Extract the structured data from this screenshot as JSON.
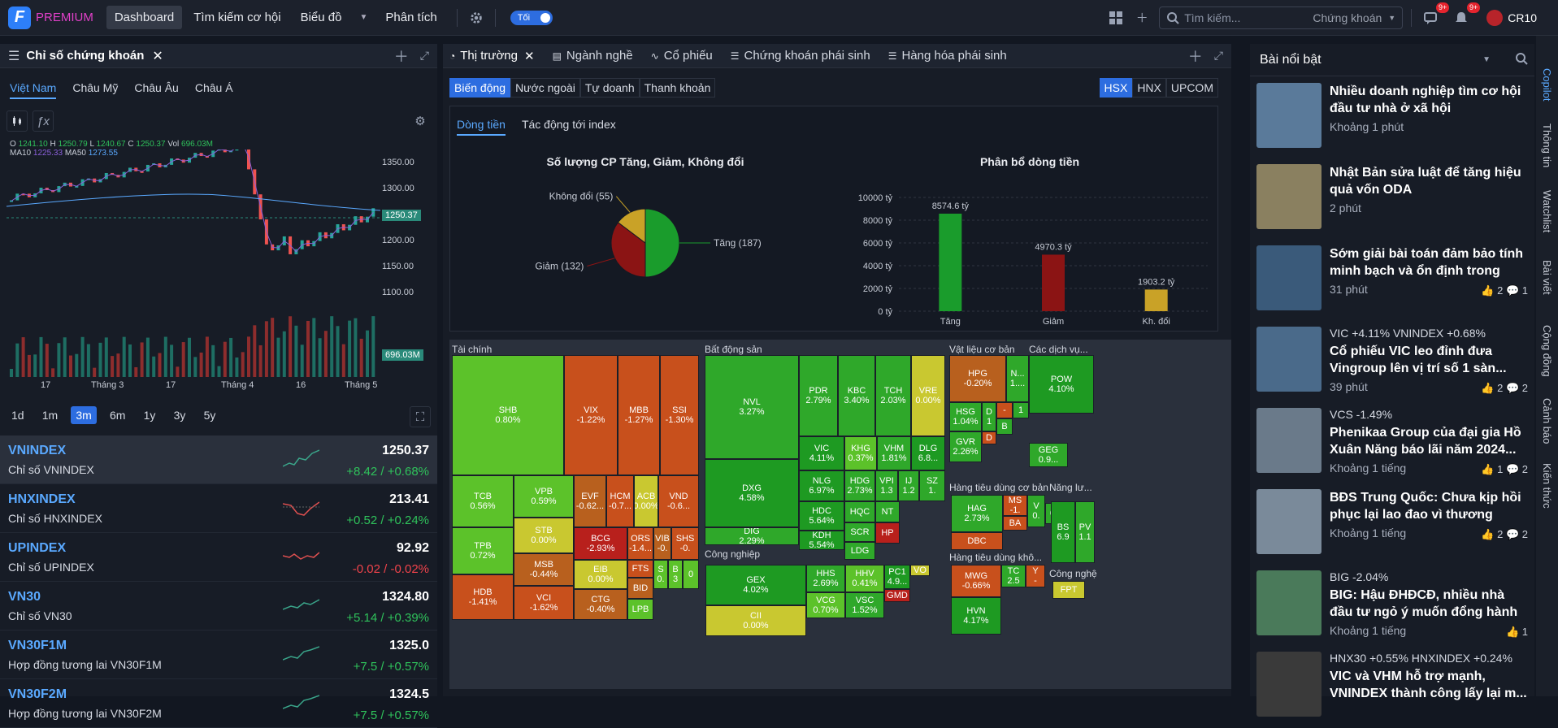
{
  "topbar": {
    "brand": "PREMIUM",
    "nav": [
      "Dashboard",
      "Tìm kiếm cơ hội",
      "Biểu đồ",
      "Phân tích"
    ],
    "theme_label": "Tối",
    "search_placeholder": "Tìm kiếm...",
    "search_scope": "Chứng khoán",
    "notif_count_1": "9+",
    "notif_count_2": "9+",
    "user": "CR10"
  },
  "left": {
    "panel_title": "Chỉ số chứng khoán",
    "regions": [
      "Việt Nam",
      "Châu Mỹ",
      "Châu Âu",
      "Châu Á"
    ],
    "ohlc": {
      "o_label": "O",
      "o": "1241.10",
      "h_label": "H",
      "h": "1250.79",
      "l_label": "L",
      "l": "1240.67",
      "c_label": "C",
      "c": "1250.37",
      "vol_label": "Vol",
      "vol": "696.03M"
    },
    "ma": {
      "ma10_label": "MA10",
      "ma10": "1225.33",
      "ma50_label": "MA50",
      "ma50": "1273.55"
    },
    "price_axis": [
      "1350.00",
      "1300.00",
      "1250.37",
      "1200.00",
      "1150.00",
      "1100.00",
      "696.03M"
    ],
    "date_axis": [
      "17",
      "Tháng 3",
      "17",
      "Tháng 4",
      "16",
      "Tháng 5"
    ],
    "ranges": [
      "1d",
      "1m",
      "3m",
      "6m",
      "1y",
      "3y",
      "5y"
    ],
    "active_range": "3m",
    "indices": [
      {
        "name": "VNINDEX",
        "desc": "Chỉ số VNINDEX",
        "value": "1250.37",
        "change": "+8.42 / +0.68%",
        "dir": "up"
      },
      {
        "name": "HNXINDEX",
        "desc": "Chỉ số HNXINDEX",
        "value": "213.41",
        "change": "+0.52 / +0.24%",
        "dir": "up"
      },
      {
        "name": "UPINDEX",
        "desc": "Chỉ số UPINDEX",
        "value": "92.92",
        "change": "-0.02 / -0.02%",
        "dir": "dn"
      },
      {
        "name": "VN30",
        "desc": "Chỉ số VN30",
        "value": "1324.80",
        "change": "+5.14 / +0.39%",
        "dir": "up"
      },
      {
        "name": "VN30F1M",
        "desc": "Hợp đồng tương lai VN30F1M",
        "value": "1325.0",
        "change": "+7.5 / +0.57%",
        "dir": "up"
      },
      {
        "name": "VN30F2M",
        "desc": "Hợp đồng tương lai VN30F2M",
        "value": "1324.5",
        "change": "+7.5 / +0.57%",
        "dir": "up"
      }
    ]
  },
  "mid": {
    "tabs": [
      "Thị trường",
      "Ngành nghề",
      "Cổ phiếu",
      "Chứng khoán phái sinh",
      "Hàng hóa phái sinh"
    ],
    "modes": [
      "Biến động",
      "Nước ngoài",
      "Tự doanh",
      "Thanh khoản"
    ],
    "exchanges": [
      "HSX",
      "HNX",
      "UPCOM"
    ],
    "subtabs": [
      "Dòng tiền",
      "Tác động tới index"
    ],
    "pie_title": "Số lượng CP Tăng, Giảm, Không đổi",
    "pie_labels": {
      "up": "Tăng (187)",
      "down": "Giảm (132)",
      "flat": "Không đổi (55)"
    },
    "bar_title": "Phân bổ dòng tiền",
    "bar_yticks": [
      "10000 tỷ",
      "8000 tỷ",
      "6000 tỷ",
      "4000 tỷ",
      "2000 tỷ",
      "0 tỷ"
    ],
    "sectors": {
      "finance": "Tài chính",
      "realestate": "Bất động sản",
      "materials": "Vật liệu cơ bản",
      "services": "Các dịch vụ...",
      "industry": "Công nghiệp",
      "consumer": "Hàng tiêu dùng cơ bản",
      "consumer2": "Hàng tiêu dùng khô...",
      "energy": "Năng lư...",
      "tech": "Công nghệ"
    }
  },
  "chart_data": [
    {
      "type": "pie",
      "title": "Số lượng CP Tăng, Giảm, Không đổi",
      "categories": [
        "Tăng",
        "Giảm",
        "Không đổi"
      ],
      "values": [
        187,
        132,
        55
      ],
      "colors": [
        "#1a9c2c",
        "#8b1414",
        "#c9a227"
      ]
    },
    {
      "type": "bar",
      "title": "Phân bổ dòng tiền",
      "categories": [
        "Tăng",
        "Giảm",
        "Kh. đổi"
      ],
      "values": [
        8574.6,
        4970.3,
        1903.2
      ],
      "value_labels": [
        "8574.6 tỷ",
        "4970.3 tỷ",
        "1903.2 tỷ"
      ],
      "ylim": [
        0,
        10000
      ],
      "colors": [
        "#1a9c2c",
        "#8b1414",
        "#c9a227"
      ]
    }
  ],
  "treemap": [
    {
      "t": "SHB",
      "v": "0.80%",
      "c": "#5cc22a"
    },
    {
      "t": "VIX",
      "v": "-1.22%",
      "c": "#c8501c"
    },
    {
      "t": "MBB",
      "v": "-1.27%",
      "c": "#c8501c"
    },
    {
      "t": "SSI",
      "v": "-1.30%",
      "c": "#c8501c"
    },
    {
      "t": "TCB",
      "v": "0.56%",
      "c": "#5cc22a"
    },
    {
      "t": "VPB",
      "v": "0.59%",
      "c": "#5cc22a"
    },
    {
      "t": "EVF",
      "v": "-0.62...",
      "c": "#b8601e"
    },
    {
      "t": "HCM",
      "v": "-0.7...",
      "c": "#c8501c"
    },
    {
      "t": "ACB",
      "v": "0.00%",
      "c": "#c9c830"
    },
    {
      "t": "VND",
      "v": "-0.6...",
      "c": "#c8501c"
    },
    {
      "t": "STB",
      "v": "0.00%",
      "c": "#c9c830"
    },
    {
      "t": "TPB",
      "v": "0.72%",
      "c": "#5cc22a"
    },
    {
      "t": "BCG",
      "v": "-2.93%",
      "c": "#b8201c"
    },
    {
      "t": "ORS",
      "v": "-1.4...",
      "c": "#c8501c"
    },
    {
      "t": "VIB",
      "v": "-0.",
      "c": "#b8601e"
    },
    {
      "t": "SHS",
      "v": "-0.",
      "c": "#c8501c"
    },
    {
      "t": "MSB",
      "v": "-0.44%",
      "c": "#b8601e"
    },
    {
      "t": "EIB",
      "v": "0.00%",
      "c": "#c9c830"
    },
    {
      "t": "FTS",
      "v": "",
      "c": "#c8501c"
    },
    {
      "t": "S",
      "v": "0.",
      "c": "#5cc22a"
    },
    {
      "t": "B",
      "v": "3",
      "c": "#5cc22a"
    },
    {
      "t": "",
      "v": "0",
      "c": "#5cc22a"
    },
    {
      "t": "HDB",
      "v": "-1.41%",
      "c": "#c8501c"
    },
    {
      "t": "VCI",
      "v": "-1.62%",
      "c": "#c8501c"
    },
    {
      "t": "BID",
      "v": "",
      "c": "#b8601e"
    },
    {
      "t": "CTG",
      "v": "-0.40%",
      "c": "#b8601e"
    },
    {
      "t": "LPB",
      "v": "",
      "c": "#5cc22a"
    },
    {
      "t": "NVL",
      "v": "3.27%",
      "c": "#2fa82a"
    },
    {
      "t": "PDR",
      "v": "2.79%",
      "c": "#2fa82a"
    },
    {
      "t": "KBC",
      "v": "3.40%",
      "c": "#2fa82a"
    },
    {
      "t": "TCH",
      "v": "2.03%",
      "c": "#2fa82a"
    },
    {
      "t": "VRE",
      "v": "0.00%",
      "c": "#c9c830"
    },
    {
      "t": "VIC",
      "v": "4.11%",
      "c": "#1e9a22"
    },
    {
      "t": "KHG",
      "v": "0.37%",
      "c": "#5cc22a"
    },
    {
      "t": "VHM",
      "v": "1.81%",
      "c": "#2fa82a"
    },
    {
      "t": "DLG",
      "v": "6.8...",
      "c": "#1e9a22"
    },
    {
      "t": "DXG",
      "v": "4.58%",
      "c": "#1e9a22"
    },
    {
      "t": "NLG",
      "v": "6.97%",
      "c": "#1e9a22"
    },
    {
      "t": "HDG",
      "v": "2.73%",
      "c": "#2fa82a"
    },
    {
      "t": "VPI",
      "v": "1.3",
      "c": "#2fa82a"
    },
    {
      "t": "IJ",
      "v": "1.2",
      "c": "#2fa82a"
    },
    {
      "t": "SZ",
      "v": "1.",
      "c": "#2fa82a"
    },
    {
      "t": "HDC",
      "v": "5.64%",
      "c": "#1e9a22"
    },
    {
      "t": "HQC",
      "v": "",
      "c": "#2fa82a"
    },
    {
      "t": "NT",
      "v": "",
      "c": "#2fa82a"
    },
    {
      "t": "DIG",
      "v": "2.29%",
      "c": "#2fa82a"
    },
    {
      "t": "KDH",
      "v": "5.54%",
      "c": "#1e9a22"
    },
    {
      "t": "SCR",
      "v": "",
      "c": "#2fa82a"
    },
    {
      "t": "HP",
      "v": "",
      "c": "#b8201c"
    },
    {
      "t": "LDG",
      "v": "",
      "c": "#2fa82a"
    },
    {
      "t": "HPG",
      "v": "-0.20%",
      "c": "#b8601e"
    },
    {
      "t": "N...",
      "v": "1....",
      "c": "#2fa82a"
    },
    {
      "t": "HSG",
      "v": "1.04%",
      "c": "#2fa82a"
    },
    {
      "t": "D",
      "v": "1",
      "c": "#2fa82a"
    },
    {
      "t": "-",
      "v": "",
      "c": "#c8501c"
    },
    {
      "t": "1",
      "v": "",
      "c": "#2fa82a"
    },
    {
      "t": "D",
      "v": "",
      "c": "#c8501c"
    },
    {
      "t": "B",
      "v": "",
      "c": "#2fa82a"
    },
    {
      "t": "GVR",
      "v": "2.26%",
      "c": "#2fa82a"
    },
    {
      "t": "POW",
      "v": "4.10%",
      "c": "#1e9a22"
    },
    {
      "t": "GEG",
      "v": "0.9...",
      "c": "#2fa82a"
    },
    {
      "t": "GEX",
      "v": "4.02%",
      "c": "#1e9a22"
    },
    {
      "t": "HHS",
      "v": "2.69%",
      "c": "#2fa82a"
    },
    {
      "t": "HHV",
      "v": "0.41%",
      "c": "#5cc22a"
    },
    {
      "t": "PC1",
      "v": "4.9...",
      "c": "#1e9a22"
    },
    {
      "t": "VO",
      "v": "",
      "c": "#c9c830"
    },
    {
      "t": "GMD",
      "v": "",
      "c": "#b8201c"
    },
    {
      "t": "CII",
      "v": "0.00%",
      "c": "#c9c830"
    },
    {
      "t": "VCG",
      "v": "0.70%",
      "c": "#5cc22a"
    },
    {
      "t": "VSC",
      "v": "1.52%",
      "c": "#2fa82a"
    },
    {
      "t": "HAG",
      "v": "2.73%",
      "c": "#2fa82a"
    },
    {
      "t": "MS",
      "v": "-1.",
      "c": "#c8501c"
    },
    {
      "t": "V",
      "v": "0.",
      "c": "#2fa82a"
    },
    {
      "t": "0",
      "v": "",
      "c": "#2fa82a"
    },
    {
      "t": "BA",
      "v": "",
      "c": "#c8501c"
    },
    {
      "t": "DBC",
      "v": "",
      "c": "#c8501c"
    },
    {
      "t": "BS",
      "v": "6.9",
      "c": "#1e9a22"
    },
    {
      "t": "PV",
      "v": "1.1",
      "c": "#2fa82a"
    },
    {
      "t": "MWG",
      "v": "-0.66%",
      "c": "#c8501c"
    },
    {
      "t": "TC",
      "v": "2.5",
      "c": "#2fa82a"
    },
    {
      "t": "Y",
      "v": "-",
      "c": "#c8501c"
    },
    {
      "t": "HVN",
      "v": "4.17%",
      "c": "#1e9a22"
    },
    {
      "t": "FPT",
      "v": "",
      "c": "#c9c830"
    }
  ],
  "right": {
    "title": "Bài nổi bật",
    "news": [
      {
        "tag": "",
        "title": "Nhiều doanh nghiệp tìm cơ hội đầu tư nhà ở xã hội",
        "time": "Khoảng 1 phút",
        "likes": "",
        "comments": ""
      },
      {
        "tag": "",
        "title": "Nhật Bản sửa luật để tăng hiệu quả vốn ODA",
        "time": "2 phút",
        "likes": "",
        "comments": ""
      },
      {
        "tag": "",
        "title": "Sớm giải bài toán đảm bảo tính minh bạch và ổn định trong cơ...",
        "time": "31 phút",
        "likes": "2",
        "comments": "1"
      },
      {
        "tag": "VIC +4.11%   VNINDEX +0.68%",
        "title": "Cổ phiếu VIC leo đỉnh đưa Vingroup lên vị trí số 1 sàn...",
        "time": "39 phút",
        "likes": "2",
        "comments": "2"
      },
      {
        "tag": "VCS -1.49%",
        "title": "Phenikaa Group của đại gia Hồ Xuân Năng báo lãi năm 2024...",
        "time": "Khoảng 1 tiếng",
        "likes": "1",
        "comments": "2"
      },
      {
        "tag": "",
        "title": "BĐS Trung Quốc: Chưa kịp hồi phục lại lao đao vì thương chiến",
        "time": "Khoảng 1 tiếng",
        "likes": "2",
        "comments": "2"
      },
      {
        "tag": "BIG -2.04%",
        "title": "BIG: Hậu ĐHĐCĐ, nhiều nhà đầu tư ngỏ ý muốn đổng hành lâu...",
        "time": "Khoảng 1 tiếng",
        "likes": "1",
        "comments": ""
      },
      {
        "tag": "HNX30 +0.55%   HNXINDEX +0.24%",
        "title": "VIC và VHM hỗ trợ mạnh, VNINDEX thành công lấy lại m...",
        "time": "",
        "likes": "",
        "comments": ""
      }
    ],
    "vtabs": [
      "Copilot",
      "Thông tin",
      "Watchlist",
      "Bài viết",
      "Cộng đồng",
      "Cảnh báo",
      "Kiến thức"
    ]
  },
  "colors": {
    "accent": "#2d6de0",
    "up": "#2fc25b",
    "down": "#f0434b",
    "link": "#5aa9ff"
  }
}
